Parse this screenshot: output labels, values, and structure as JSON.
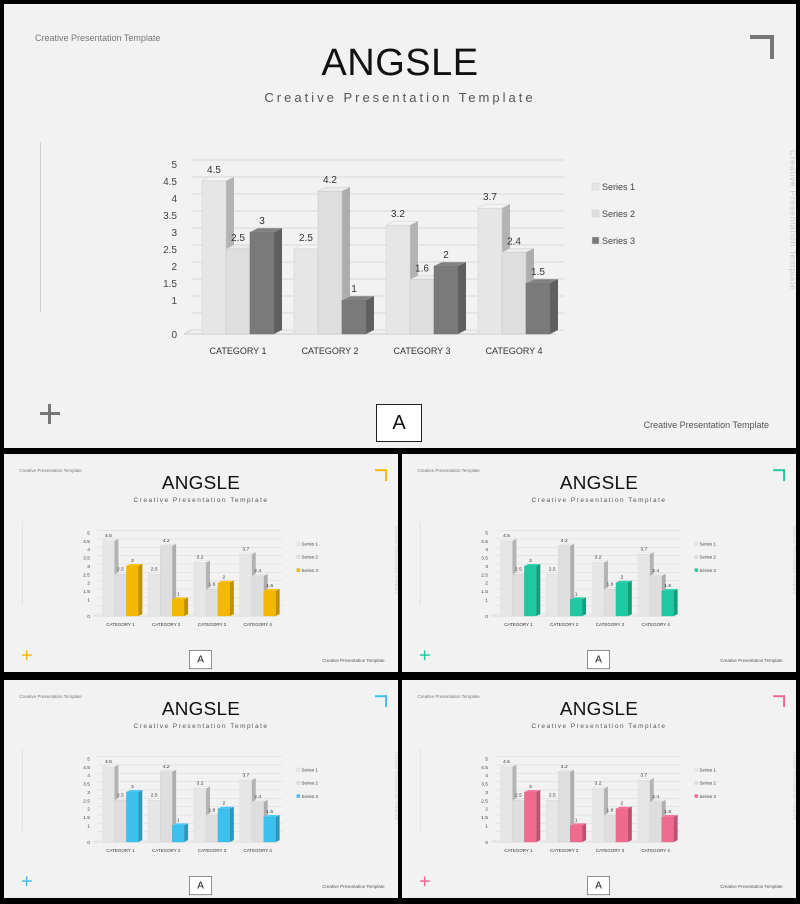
{
  "slide": {
    "header": "Creative Presentation Template",
    "title": "ANGSLE",
    "subtitle": "Creative Presentation Template",
    "vertical_text": "Creative Presentation Template",
    "box_letter": "A",
    "footer": "Creative Presentation Template"
  },
  "variants": [
    {
      "accent": "#777777",
      "series3": "#7a7a7a"
    },
    {
      "accent": "#f5b800",
      "series3": "#f5b800"
    },
    {
      "accent": "#1ec8a0",
      "series3": "#1ec8a0"
    },
    {
      "accent": "#3cc0ee",
      "series3": "#3cc0ee"
    },
    {
      "accent": "#ee6a8f",
      "series3": "#ee6a8f"
    }
  ],
  "chart_data": {
    "type": "bar",
    "categories": [
      "CATEGORY 1",
      "CATEGORY 2",
      "CATEGORY 3",
      "CATEGORY 4"
    ],
    "series": [
      {
        "name": "Series 1",
        "values": [
          4.5,
          2.5,
          3.2,
          3.7
        ]
      },
      {
        "name": "Series 2",
        "values": [
          2.5,
          4.2,
          1.6,
          2.4
        ]
      },
      {
        "name": "Series 3",
        "values": [
          3,
          1,
          2,
          1.5
        ]
      }
    ],
    "yticks": [
      "0",
      "1",
      "1.5",
      "2",
      "2.5",
      "3",
      "3.5",
      "4",
      "4.5",
      "5"
    ],
    "ylim": [
      0,
      5
    ],
    "legend": "right",
    "grid": true
  }
}
